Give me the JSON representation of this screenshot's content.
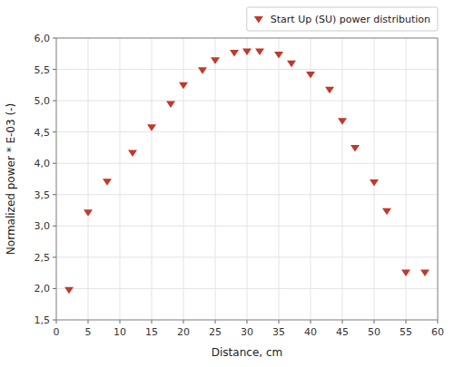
{
  "chart_data": {
    "type": "scatter",
    "xlabel": "Distance, cm",
    "ylabel": "Normalized power * E-03 (-)",
    "x": [
      2,
      5,
      8,
      12,
      15,
      18,
      20,
      23,
      25,
      28,
      30,
      32,
      35,
      37,
      40,
      43,
      45,
      47,
      50,
      52,
      55,
      58
    ],
    "series": [
      {
        "name": "Start Up (SU) power distribution",
        "color": "#c0392b",
        "marker": "triangle-down",
        "values": [
          1.98,
          3.22,
          3.71,
          4.17,
          4.58,
          4.95,
          5.25,
          5.49,
          5.65,
          5.77,
          5.79,
          5.79,
          5.74,
          5.6,
          5.42,
          5.18,
          4.68,
          4.25,
          3.7,
          3.24,
          2.26,
          2.26
        ]
      }
    ],
    "xlim": [
      0,
      60
    ],
    "ylim": [
      1.5,
      6.0
    ],
    "xticks": [
      0,
      5,
      10,
      15,
      20,
      25,
      30,
      35,
      40,
      45,
      50,
      55,
      60
    ],
    "yticks": [
      {
        "value": 1.5,
        "label": "1,5"
      },
      {
        "value": 2.0,
        "label": "2,0"
      },
      {
        "value": 2.5,
        "label": "2,5"
      },
      {
        "value": 3.0,
        "label": "3,0"
      },
      {
        "value": 3.5,
        "label": "3,5"
      },
      {
        "value": 4.0,
        "label": "4,0"
      },
      {
        "value": 4.5,
        "label": "4,5"
      },
      {
        "value": 5.0,
        "label": "5,0"
      },
      {
        "value": 5.5,
        "label": "5,5"
      },
      {
        "value": 6.0,
        "label": "6,0"
      }
    ],
    "grid": true,
    "legend": "upper right"
  }
}
